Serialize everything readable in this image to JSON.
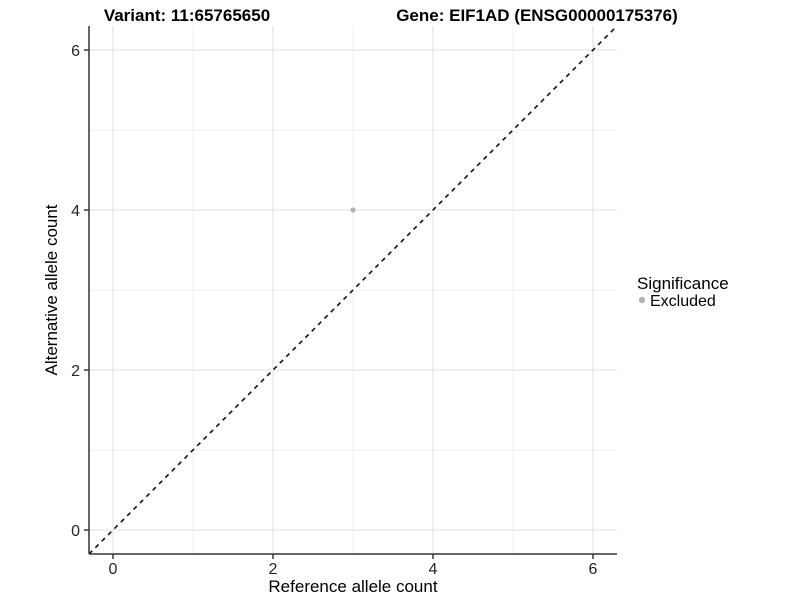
{
  "title": {
    "variant": "Variant: 11:65765650",
    "gene": "Gene: EIF1AD (ENSG00000175376)"
  },
  "axes": {
    "x_label": "Reference allele count",
    "y_label": "Alternative allele count"
  },
  "legend": {
    "title": "Significance",
    "items": [
      {
        "label": "Excluded",
        "color": "#b3b3b3"
      }
    ]
  },
  "colors": {
    "background": "#ffffff",
    "grid_major": "#e6e6e6",
    "grid_minor": "#f0f0f0",
    "axis": "#333333",
    "tick": "#333333",
    "point": "#b3b3b3",
    "identity_line": "#111111"
  },
  "chart_data": {
    "type": "scatter",
    "title": "Variant: 11:65765650   Gene: EIF1AD (ENSG00000175376)",
    "xlabel": "Reference allele count",
    "ylabel": "Alternative allele count",
    "xlim": [
      -0.3,
      6.3
    ],
    "ylim": [
      -0.3,
      6.3
    ],
    "x_major_ticks": [
      0,
      2,
      4,
      6
    ],
    "y_major_ticks": [
      0,
      2,
      4,
      6
    ],
    "x_minor_ticks": [
      1,
      3,
      5
    ],
    "y_minor_ticks": [
      1,
      3,
      5
    ],
    "grid": true,
    "legend_position": "right",
    "series": [
      {
        "name": "Excluded",
        "color": "#b3b3b3",
        "point_radius": 2.6,
        "points": [
          {
            "x": 3,
            "y": 4
          }
        ]
      }
    ],
    "reference_line": {
      "type": "identity",
      "from": [
        -0.3,
        -0.3
      ],
      "to": [
        6.3,
        6.3
      ],
      "style": "dashed",
      "color": "#111111"
    }
  }
}
